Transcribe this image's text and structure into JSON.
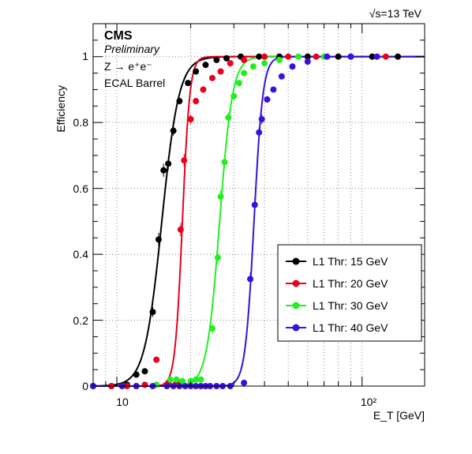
{
  "chart_data": {
    "type": "scatter",
    "energy_label": "√s=13 TeV",
    "experiment": "CMS",
    "status": "Preliminary",
    "process": "Z → e⁺e⁻",
    "detector": "ECAL Barrel",
    "xlabel": "E_T [GeV]",
    "ylabel": "Efficiency",
    "x_scale": "log",
    "xlim": [
      8,
      180
    ],
    "ylim": [
      0,
      1.1
    ],
    "x_tick_labels": [
      "10",
      "10²"
    ],
    "y_tick_labels": [
      "0",
      "0.2",
      "0.4",
      "0.6",
      "0.8",
      "1"
    ],
    "grid": true,
    "legend_position": "bottom-right",
    "series": [
      {
        "name": "L1 Thr: 15 GeV",
        "color": "#000000",
        "x": [
          8,
          9.5,
          11,
          12,
          13,
          14,
          14.8,
          15.5,
          16.2,
          17,
          18,
          19.5,
          21,
          23,
          25.5,
          28,
          32,
          38,
          46,
          60,
          80,
          110,
          140
        ],
        "y": [
          0,
          0,
          0.004,
          0.035,
          0.045,
          0.225,
          0.445,
          0.655,
          0.675,
          0.775,
          0.865,
          0.92,
          0.955,
          0.975,
          0.99,
          0.995,
          1.0,
          1.0,
          1.0,
          1.0,
          1.0,
          1.0,
          1.0
        ],
        "yerr": [
          0,
          0,
          0,
          0,
          0,
          0.015,
          0.02,
          0.02,
          0.02,
          0.015,
          0.01,
          0,
          0,
          0,
          0,
          0,
          0,
          0,
          0,
          0,
          0,
          0,
          0
        ]
      },
      {
        "name": "L1 Thr: 20 GeV",
        "color": "#e8001f",
        "x": [
          9.5,
          11,
          12,
          13,
          14.5,
          16.2,
          17.5,
          18.2,
          18.8,
          20,
          21,
          22.5,
          24.5,
          26.5,
          29,
          33,
          40,
          50,
          65,
          90,
          125
        ],
        "y": [
          0,
          0,
          0,
          0.004,
          0.08,
          0.01,
          0.01,
          0.475,
          0.685,
          0.81,
          0.865,
          0.9,
          0.935,
          0.955,
          0.98,
          0.99,
          1.0,
          1.0,
          1.0,
          1.0,
          1.0
        ],
        "yerr": [
          0,
          0,
          0,
          0,
          0,
          0,
          0,
          0.02,
          0.02,
          0.015,
          0.01,
          0,
          0,
          0,
          0,
          0,
          0,
          0,
          0,
          0,
          0
        ]
      },
      {
        "name": "L1 Thr: 30 GeV",
        "color": "#22ee22",
        "x": [
          14.5,
          16.5,
          17.5,
          18.5,
          20,
          21,
          22,
          24.5,
          25.8,
          26.5,
          27.5,
          28.5,
          30,
          31.5,
          33,
          36,
          40,
          46,
          55,
          70,
          90,
          115
        ],
        "y": [
          0.004,
          0.02,
          0.02,
          0.015,
          0.015,
          0.02,
          0.02,
          0.175,
          0.39,
          0.575,
          0.68,
          0.815,
          0.88,
          0.92,
          0.95,
          0.97,
          0.98,
          0.99,
          1.0,
          1.0,
          1.0,
          1.0
        ],
        "yerr": [
          0,
          0,
          0,
          0,
          0,
          0,
          0,
          0.015,
          0.02,
          0.02,
          0.02,
          0.015,
          0.01,
          0,
          0,
          0,
          0,
          0,
          0,
          0,
          0,
          0
        ]
      },
      {
        "name": "L1 Thr: 40 GeV",
        "color": "#3a10dd",
        "x": [
          8,
          10.5,
          12,
          14,
          16,
          17,
          18,
          19,
          20,
          21,
          22,
          23,
          24,
          25.5,
          27,
          29,
          33,
          35,
          36.5,
          38,
          39,
          41,
          43.5,
          47,
          52,
          60,
          72,
          90,
          115
        ],
        "y": [
          0,
          0,
          0,
          0,
          0,
          0,
          0,
          0,
          0,
          0,
          0,
          0,
          0,
          0,
          0,
          0,
          0.01,
          0.325,
          0.55,
          0.77,
          0.81,
          0.87,
          0.9,
          0.94,
          0.97,
          0.985,
          1.0,
          1.0,
          1.0
        ],
        "yerr": [
          0,
          0,
          0,
          0,
          0,
          0,
          0,
          0,
          0,
          0,
          0,
          0,
          0,
          0,
          0,
          0,
          0,
          0.02,
          0.02,
          0.015,
          0.015,
          0.01,
          0,
          0,
          0,
          0,
          0,
          0,
          0
        ]
      }
    ]
  }
}
